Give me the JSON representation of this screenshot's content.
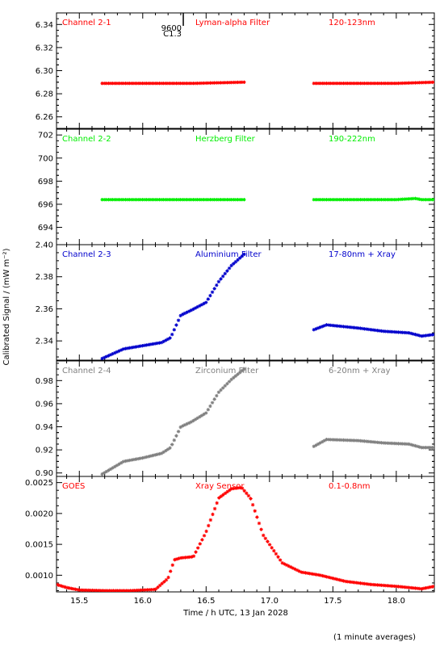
{
  "chart_data": {
    "type": "scatter",
    "xlabel": "Time / h UTC, 13 Jan 2028",
    "ylabel": "Calibrated Signal / (mW m⁻²)",
    "xlim": [
      15.32,
      18.3
    ],
    "xticks": [
      15.5,
      16.0,
      16.5,
      17.0,
      17.5,
      18.0
    ],
    "xtick_labels": [
      "15.5",
      "16.0",
      "16.5",
      "17.0",
      "17.5",
      "18.0"
    ],
    "footnote": "(1 minute averages)",
    "flare_marker": {
      "x": 16.32,
      "label_top": "9600",
      "label_bottom": "C1.3"
    },
    "gap": [
      16.8,
      17.35
    ],
    "panels": [
      {
        "channel": "Channel 2-1",
        "filter": "Lyman-alpha Filter",
        "band": "120-123nm",
        "color": "#ff0000",
        "ylim": [
          6.25,
          6.35
        ],
        "yticks": [
          6.26,
          6.28,
          6.3,
          6.32,
          6.34
        ],
        "ytick_labels": [
          "6.26",
          "6.28",
          "6.30",
          "6.32",
          "6.34"
        ],
        "series": [
          {
            "x": [
              15.68,
              16.0,
              16.4,
              16.8
            ],
            "y": [
              6.289,
              6.289,
              6.289,
              6.29
            ]
          },
          {
            "x": [
              17.35,
              17.7,
              18.0,
              18.3
            ],
            "y": [
              6.289,
              6.289,
              6.289,
              6.29
            ]
          }
        ]
      },
      {
        "channel": "Channel 2-2",
        "filter": "Herzberg Filter",
        "band": "190-222nm",
        "color": "#00ee00",
        "ylim": [
          692.5,
          702.5
        ],
        "yticks": [
          694,
          696,
          698,
          700,
          702
        ],
        "ytick_labels": [
          "694",
          "696",
          "698",
          "700",
          "702"
        ],
        "series": [
          {
            "x": [
              15.68,
              16.0,
              16.4,
              16.8
            ],
            "y": [
              696.4,
              696.4,
              696.4,
              696.4
            ]
          },
          {
            "x": [
              17.35,
              17.7,
              18.0,
              18.15,
              18.2,
              18.3
            ],
            "y": [
              696.4,
              696.4,
              696.4,
              696.5,
              696.4,
              696.4
            ]
          }
        ]
      },
      {
        "channel": "Channel 2-3",
        "filter": "Aluminium Filter",
        "band": "17-80nm + Xray",
        "color": "#0000cc",
        "ylim": [
          2.328,
          2.4
        ],
        "yticks": [
          2.34,
          2.36,
          2.38,
          2.4
        ],
        "ytick_labels": [
          "2.34",
          "2.36",
          "2.38",
          "2.40"
        ],
        "series": [
          {
            "x": [
              15.68,
              15.85,
              16.0,
              16.15,
              16.22,
              16.3,
              16.38,
              16.5,
              16.6,
              16.7,
              16.8
            ],
            "y": [
              2.329,
              2.335,
              2.337,
              2.339,
              2.342,
              2.356,
              2.359,
              2.364,
              2.377,
              2.387,
              2.394
            ]
          },
          {
            "x": [
              17.35,
              17.45,
              17.7,
              17.9,
              18.1,
              18.2,
              18.3
            ],
            "y": [
              2.347,
              2.35,
              2.348,
              2.346,
              2.345,
              2.343,
              2.344
            ]
          }
        ]
      },
      {
        "channel": "Channel 2-4",
        "filter": "Zirconium Filter",
        "band": "6-20nm + Xray",
        "color": "#808080",
        "ylim": [
          0.897,
          0.997
        ],
        "yticks": [
          0.9,
          0.92,
          0.94,
          0.96,
          0.98
        ],
        "ytick_labels": [
          "0.90",
          "0.92",
          "0.94",
          "0.96",
          "0.98"
        ],
        "series": [
          {
            "x": [
              15.68,
              15.85,
              16.0,
              16.15,
              16.22,
              16.3,
              16.38,
              16.5,
              16.6,
              16.7,
              16.8
            ],
            "y": [
              0.899,
              0.91,
              0.913,
              0.917,
              0.922,
              0.94,
              0.944,
              0.952,
              0.97,
              0.981,
              0.99
            ]
          },
          {
            "x": [
              17.35,
              17.45,
              17.7,
              17.9,
              18.1,
              18.2,
              18.3
            ],
            "y": [
              0.923,
              0.929,
              0.928,
              0.926,
              0.925,
              0.922,
              0.922
            ]
          }
        ]
      },
      {
        "channel": "GOES",
        "filter": "Xray Sensor",
        "band": "0.1-0.8nm",
        "color": "#ff0000",
        "ylim": [
          0.00073,
          0.0026
        ],
        "yticks": [
          0.001,
          0.0015,
          0.002,
          0.0025
        ],
        "ytick_labels": [
          "0.0010",
          "0.0015",
          "0.0020",
          "0.0025"
        ],
        "series": [
          {
            "x": [
              15.32,
              15.4,
              15.5,
              15.7,
              15.9,
              16.1,
              16.2,
              16.25,
              16.3,
              16.4,
              16.5,
              16.6,
              16.7,
              16.78,
              16.85,
              16.95,
              17.1,
              17.25,
              17.4,
              17.6,
              17.8,
              18.0,
              18.2,
              18.3
            ],
            "y": [
              0.00085,
              0.0008,
              0.00076,
              0.00075,
              0.00075,
              0.00077,
              0.00095,
              0.00125,
              0.00128,
              0.0013,
              0.0017,
              0.00225,
              0.0024,
              0.00242,
              0.00225,
              0.00165,
              0.0012,
              0.00105,
              0.001,
              0.0009,
              0.00085,
              0.00082,
              0.00078,
              0.00082
            ]
          }
        ]
      }
    ]
  }
}
